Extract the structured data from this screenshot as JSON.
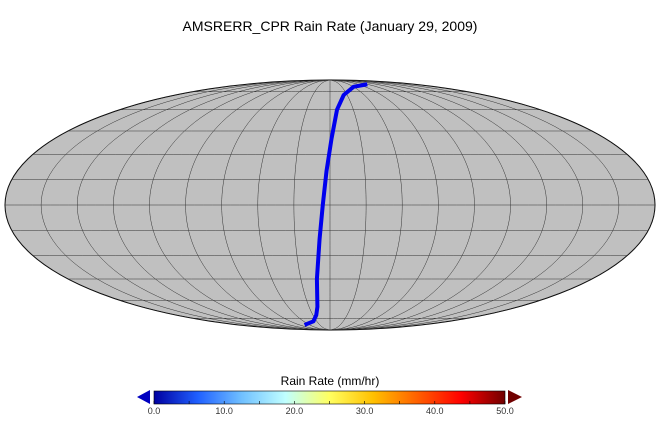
{
  "title": "AMSRERR_CPR Rain Rate (January 29, 2009)",
  "chart_data": {
    "type": "map",
    "projection": "mollweide",
    "central_longitude": -120,
    "graticule": {
      "lat_step": 15,
      "lon_step": 20
    },
    "land_color": "#c0c0c0",
    "track_color": "#0000ee",
    "track": [
      {
        "lat": -82,
        "lon": -170
      },
      {
        "lat": -78,
        "lon": -145
      },
      {
        "lat": -72,
        "lon": -136
      },
      {
        "lat": -65,
        "lon": -132
      },
      {
        "lat": -45,
        "lon": -129
      },
      {
        "lat": -20,
        "lon": -126
      },
      {
        "lat": 0,
        "lon": -124
      },
      {
        "lat": 20,
        "lon": -122
      },
      {
        "lat": 40,
        "lon": -119
      },
      {
        "lat": 60,
        "lon": -114
      },
      {
        "lat": 72,
        "lon": -104
      },
      {
        "lat": 80,
        "lon": -80
      },
      {
        "lat": 83,
        "lon": -40
      }
    ],
    "colorbar": {
      "title": "Rain Rate (mm/hr)",
      "min": 0.0,
      "max": 50.0,
      "tick_labels": [
        "0.0",
        "10.0",
        "20.0",
        "30.0",
        "40.0",
        "50.0"
      ],
      "colors": [
        "#0000a0",
        "#2060ff",
        "#70c0ff",
        "#c0ffff",
        "#ffff60",
        "#ffc000",
        "#ff6000",
        "#ff0000",
        "#700000"
      ]
    }
  }
}
